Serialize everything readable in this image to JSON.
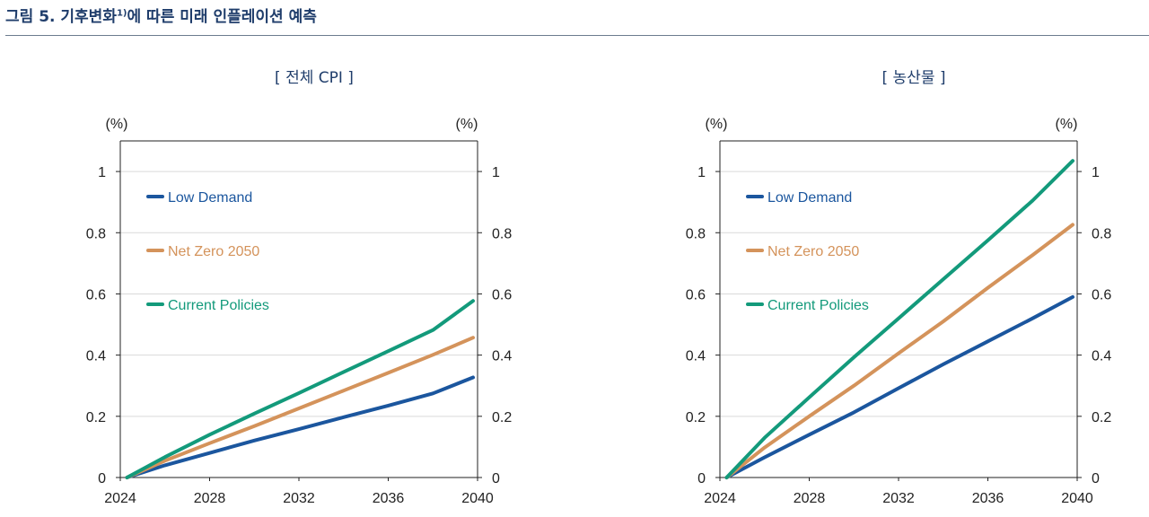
{
  "figure": {
    "prefix": "그림 5. 기후변화",
    "sup": "1)",
    "suffix": "에 따른 미래 인플레이션 예측"
  },
  "colors": {
    "low_demand": "#1b569e",
    "net_zero": "#d4935b",
    "current_policies": "#139a7b",
    "axis": "#222222",
    "grid": "#d9d9d9"
  },
  "chart_data": [
    {
      "type": "line",
      "title": "[ 전체 CPI ]",
      "left_unit": "(%)",
      "right_unit": "(%)",
      "xlim": [
        2024,
        2040
      ],
      "ylim": [
        0,
        1.1
      ],
      "x_ticks": [
        "2024",
        "2028",
        "2032",
        "2036",
        "2040"
      ],
      "x_tick_values": [
        2024,
        2028,
        2032,
        2036,
        2040
      ],
      "y_ticks": [
        "0",
        "0.2",
        "0.4",
        "0.6",
        "0.8",
        "1"
      ],
      "y_tick_values": [
        0,
        0.2,
        0.4,
        0.6,
        0.8,
        1
      ],
      "legend": {
        "placement": "top-left"
      },
      "grid": true,
      "x": [
        2024.3,
        2026,
        2028,
        2030,
        2032,
        2034,
        2036,
        2038,
        2039.8
      ],
      "series": [
        {
          "name": "Low Demand",
          "color_key": "low_demand",
          "values": [
            0,
            0.04,
            0.08,
            0.121,
            0.158,
            0.197,
            0.235,
            0.275,
            0.327
          ]
        },
        {
          "name": "Net Zero 2050",
          "color_key": "net_zero",
          "values": [
            0,
            0.055,
            0.112,
            0.168,
            0.226,
            0.284,
            0.342,
            0.401,
            0.457
          ]
        },
        {
          "name": "Current Policies",
          "color_key": "current_policies",
          "values": [
            0,
            0.067,
            0.14,
            0.209,
            0.276,
            0.345,
            0.413,
            0.482,
            0.577
          ]
        }
      ]
    },
    {
      "type": "line",
      "title": "[ 농산물 ]",
      "left_unit": "(%)",
      "right_unit": "(%)",
      "xlim": [
        2024,
        2040
      ],
      "ylim": [
        0,
        1.1
      ],
      "x_ticks": [
        "2024",
        "2028",
        "2032",
        "2036",
        "2040"
      ],
      "x_tick_values": [
        2024,
        2028,
        2032,
        2036,
        2040
      ],
      "y_ticks": [
        "0",
        "0.2",
        "0.4",
        "0.6",
        "0.8",
        "1"
      ],
      "y_tick_values": [
        0,
        0.2,
        0.4,
        0.6,
        0.8,
        1
      ],
      "legend": {
        "placement": "top-left"
      },
      "grid": true,
      "x": [
        2024.3,
        2026,
        2028,
        2030,
        2032,
        2034,
        2036,
        2038,
        2039.8
      ],
      "series": [
        {
          "name": "Low Demand",
          "color_key": "low_demand",
          "values": [
            0,
            0.066,
            0.14,
            0.213,
            0.292,
            0.37,
            0.445,
            0.52,
            0.59
          ]
        },
        {
          "name": "Net Zero 2050",
          "color_key": "net_zero",
          "values": [
            0,
            0.098,
            0.2,
            0.3,
            0.406,
            0.51,
            0.62,
            0.727,
            0.826
          ]
        },
        {
          "name": "Current Policies",
          "color_key": "current_policies",
          "values": [
            0,
            0.13,
            0.262,
            0.393,
            0.52,
            0.648,
            0.775,
            0.905,
            1.035
          ]
        }
      ]
    }
  ]
}
